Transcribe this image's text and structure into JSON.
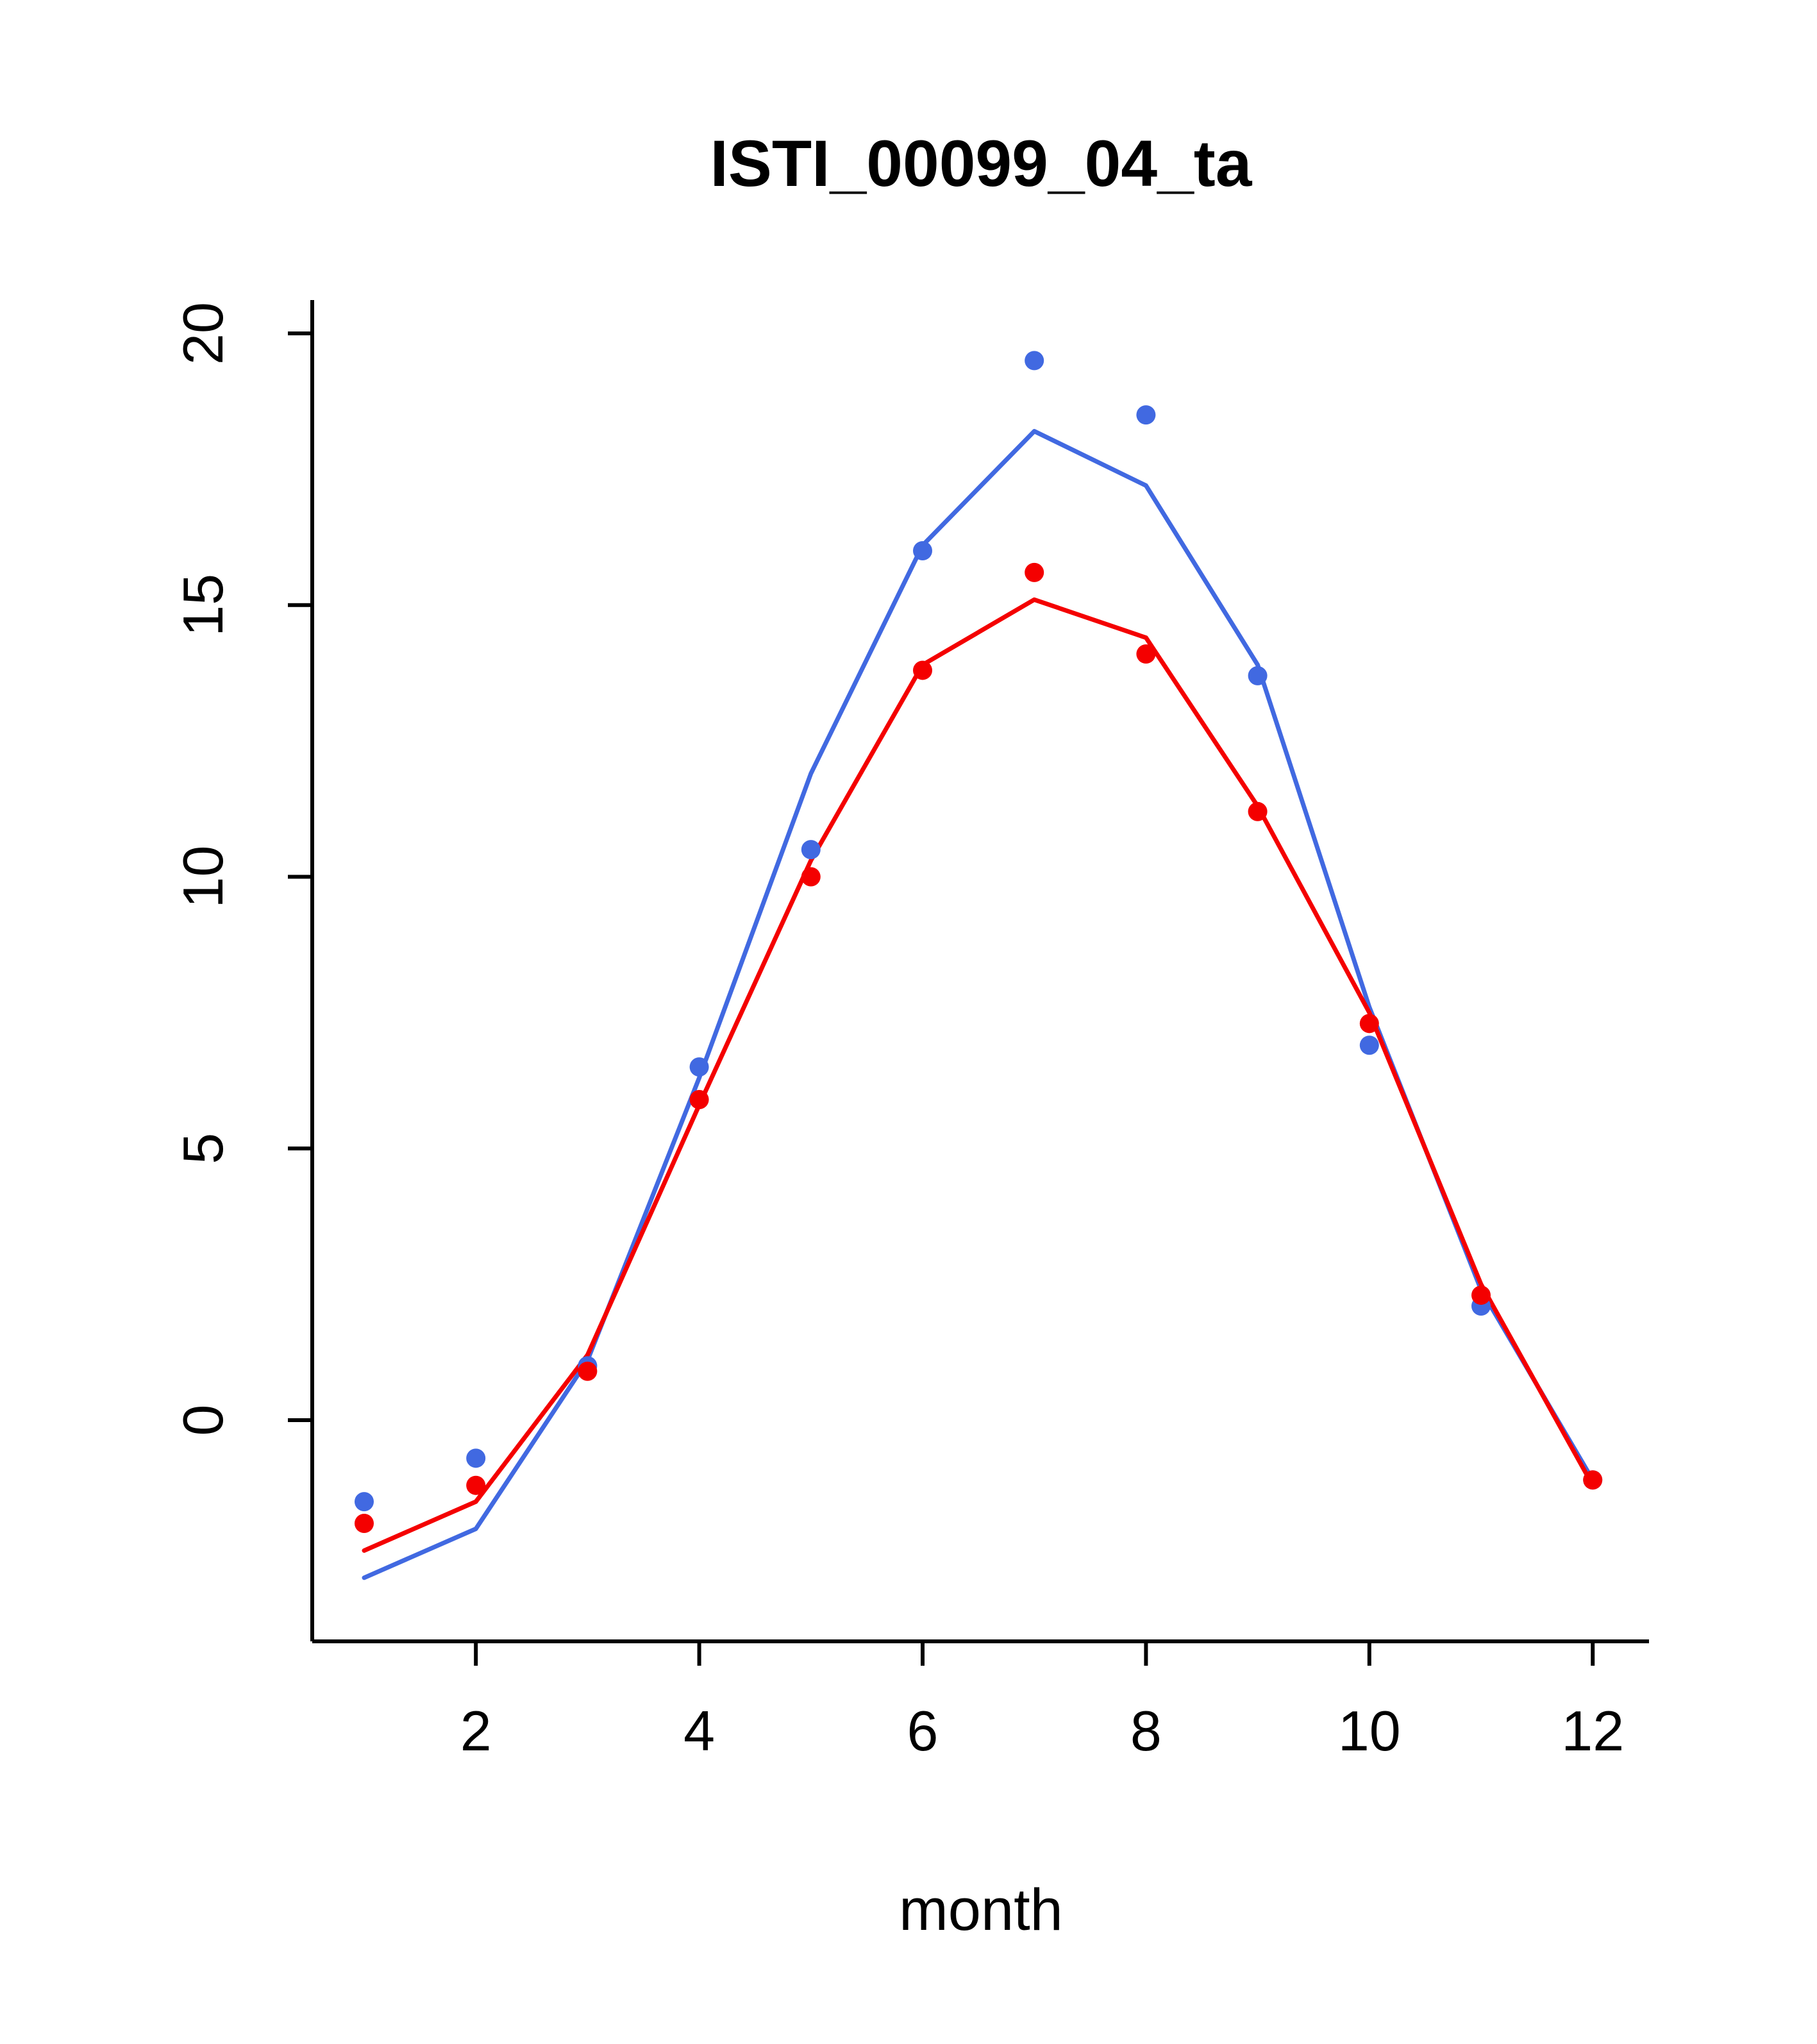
{
  "chart_data": {
    "type": "line",
    "title": "ISTI_00099_04_ta",
    "xlabel": "month",
    "ylabel": "",
    "x": [
      1,
      2,
      3,
      4,
      5,
      6,
      7,
      8,
      9,
      10,
      11,
      12
    ],
    "xticks": [
      2,
      4,
      6,
      8,
      10,
      12
    ],
    "yticks": [
      0,
      5,
      10,
      15,
      20
    ],
    "xlim": [
      0.55,
      12.45
    ],
    "ylim": [
      -4.1,
      20.6
    ],
    "grid": false,
    "legend": "none",
    "colors": {
      "blue": "#4169e1",
      "red": "#f40000",
      "axis": "#000000"
    },
    "series": [
      {
        "id": "blue-line",
        "style": "line",
        "color_key": "blue",
        "values": [
          -2.9,
          -2.0,
          1.1,
          6.3,
          11.9,
          16.1,
          18.2,
          17.2,
          13.9,
          7.6,
          2.4,
          -1.1
        ]
      },
      {
        "id": "red-line",
        "style": "line",
        "color_key": "red",
        "values": [
          -2.4,
          -1.5,
          1.2,
          5.8,
          10.3,
          13.9,
          15.1,
          14.4,
          11.3,
          7.5,
          2.5,
          -1.2
        ]
      },
      {
        "id": "blue-points",
        "style": "points",
        "color_key": "blue",
        "values": [
          -1.5,
          -0.7,
          1.0,
          6.5,
          10.5,
          16.0,
          19.5,
          18.5,
          13.7,
          6.9,
          2.1,
          -1.1
        ]
      },
      {
        "id": "red-points",
        "style": "points",
        "color_key": "red",
        "values": [
          -1.9,
          -1.2,
          0.9,
          5.9,
          10.0,
          13.8,
          15.6,
          14.1,
          11.2,
          7.3,
          2.3,
          -1.1
        ]
      }
    ]
  }
}
